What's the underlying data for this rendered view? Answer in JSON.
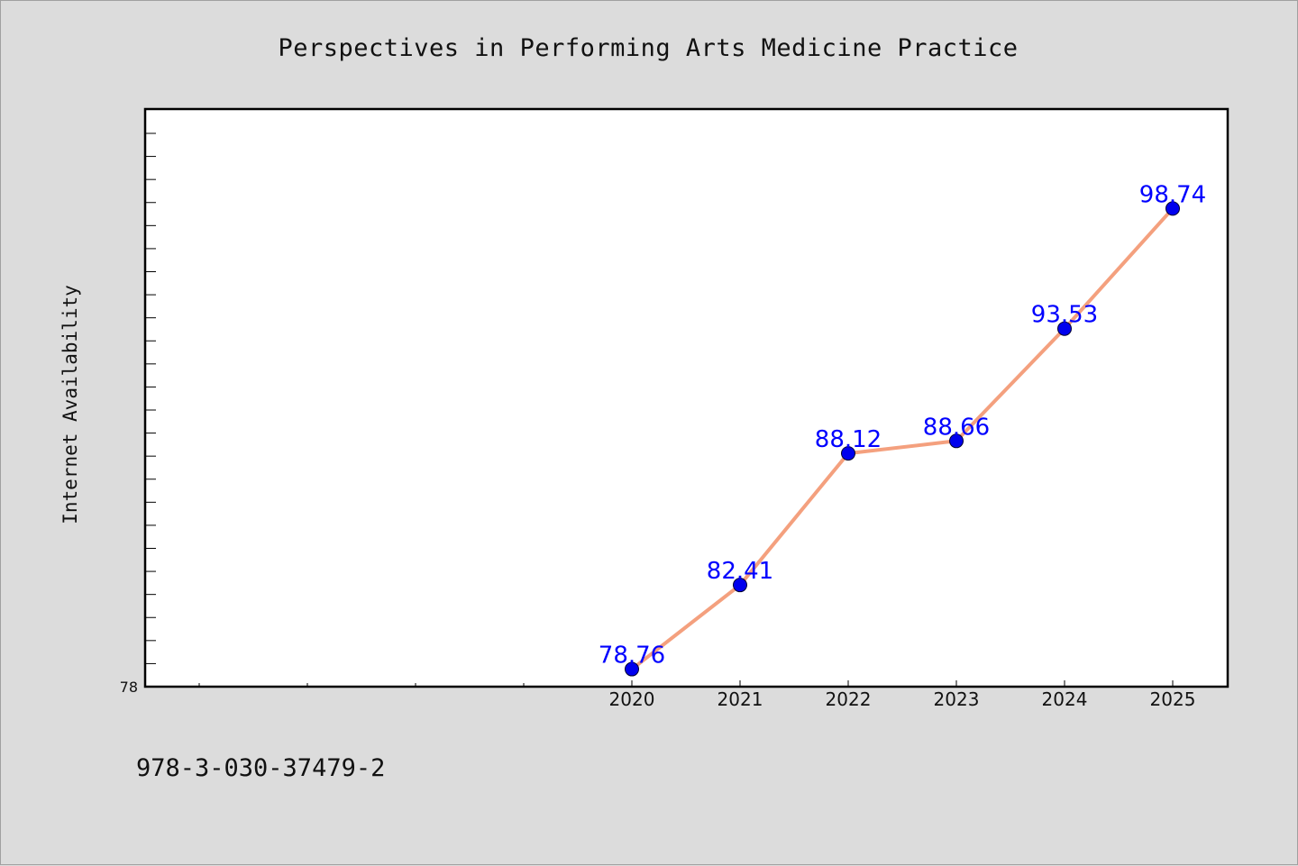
{
  "chart_data": {
    "type": "line",
    "title": "Perspectives in Performing Arts Medicine Practice",
    "xlabel": "",
    "ylabel": "Internet Availability",
    "categories": [
      "2020",
      "2021",
      "2022",
      "2023",
      "2024",
      "2025"
    ],
    "series": [
      {
        "values": [
          78.76,
          82.41,
          88.12,
          88.66,
          93.53,
          98.74
        ],
        "labels": [
          "78.76",
          "82.41",
          "88.12",
          "88.66",
          "93.53",
          "98.74"
        ]
      }
    ],
    "x_slots": 10,
    "first_category_slot": 4,
    "ylim": [
      78,
      102
    ],
    "y_tick_labels": [
      "78"
    ],
    "y_minor_step": 1,
    "grid": false,
    "legend": "none",
    "colors": {
      "line": "#f4a07e",
      "marker": "#0000ee",
      "data_label": "#0000ff",
      "background": "#dcdcdc",
      "plot_background": "#ffffff"
    }
  },
  "footer": {
    "isbn": "978-3-030-37479-2"
  }
}
